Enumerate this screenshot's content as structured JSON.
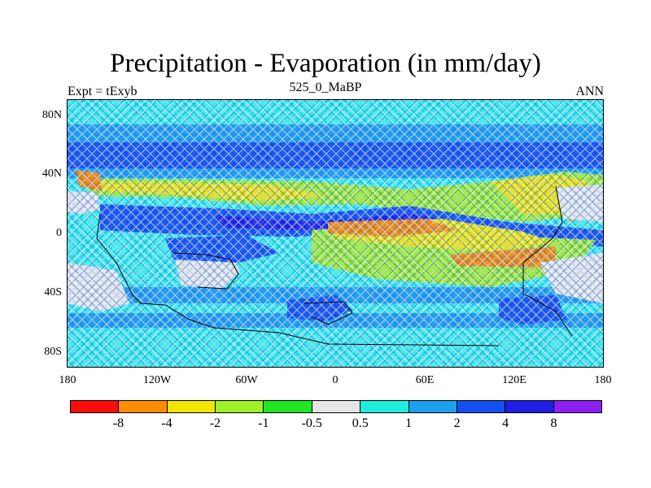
{
  "title": "Precipitation - Evaporation (in mm/day)",
  "subtitle": "525_0_MaBP",
  "left_label": "Expt = tExyb",
  "right_label": "ANN",
  "lat_labels": [
    "80N",
    "40N",
    "0",
    "40S",
    "80S"
  ],
  "lon_labels": [
    "180",
    "120W",
    "60W",
    "0",
    "60E",
    "120E",
    "180"
  ],
  "colorbar": {
    "colors": [
      "#ff0d0d",
      "#ff8c00",
      "#f0e600",
      "#a0f028",
      "#22e622",
      "#e6e6e6",
      "#1eeedc",
      "#1ea0f0",
      "#1450f0",
      "#1e1ee6",
      "#8c1ef0"
    ],
    "labels": [
      "-8",
      "-4",
      "-2",
      "-1",
      "-0.5",
      "0.5",
      "1",
      "2",
      "4",
      "8"
    ]
  },
  "chart_data": {
    "type": "heatmap",
    "title": "Precipitation - Evaporation (in mm/day)",
    "subtitle": "525_0_MaBP",
    "left_annotation": "Expt = tExyb",
    "right_annotation": "ANN",
    "x_ticks": [
      "180",
      "120W",
      "60W",
      "0",
      "60E",
      "120E",
      "180"
    ],
    "y_ticks": [
      "80N",
      "40N",
      "0",
      "40S",
      "80S"
    ],
    "xlim": [
      -180,
      180
    ],
    "ylim": [
      -90,
      90
    ],
    "levels": [
      -8,
      -4,
      -2,
      -1,
      -0.5,
      0.5,
      1,
      2,
      4,
      8
    ]
  }
}
